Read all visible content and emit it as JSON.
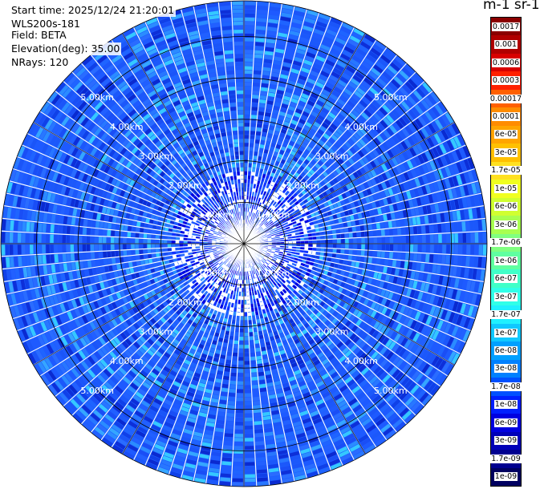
{
  "header": {
    "start_time": "Start time: 2025/12/24 21:20:01",
    "instrument": "WLS200s-181",
    "field": "Field: BETA",
    "elevation": "Elevation(deg): 35.00",
    "nrays": "NRays: 120"
  },
  "colorbar": {
    "title": "m-1 sr-1",
    "labels": [
      "0.0017",
      "0.001",
      "0.0006",
      "0.0003",
      "0.00017",
      "0.0001",
      "6e-05",
      "3e-05",
      "1.7e-05",
      "1e-05",
      "6e-06",
      "3e-06",
      "1.7e-06",
      "1e-06",
      "6e-07",
      "3e-07",
      "1.7e-07",
      "1e-07",
      "6e-08",
      "3e-08",
      "1.7e-08",
      "1e-08",
      "6e-09",
      "3e-09",
      "1.7e-09",
      "1e-09"
    ],
    "colors": [
      "#8b0000",
      "#b00000",
      "#d80000",
      "#ff2000",
      "#ff6000",
      "#ff8c00",
      "#ffa500",
      "#ffc000",
      "#ffe020",
      "#f0ff20",
      "#d0ff30",
      "#a8ff50",
      "#80ff80",
      "#60ffa0",
      "#40ffc8",
      "#30ffe8",
      "#20f0ff",
      "#10c8ff",
      "#00a0ff",
      "#0080ff",
      "#0050ff",
      "#0020ff",
      "#0000e0",
      "#0000b8",
      "#000090",
      "#000060"
    ]
  },
  "chart_data": {
    "type": "polar-ppi",
    "field": "BETA",
    "units": "m-1 sr-1",
    "n_rays": 120,
    "elevation_deg": 35.0,
    "range_rings_km": [
      1.0,
      2.0,
      3.0,
      4.0,
      5.0
    ],
    "ring_labels": [
      "1.00km",
      "2.00km",
      "3.00km",
      "4.00km",
      "5.00km"
    ],
    "max_range_km": 5.86,
    "dominant_value_range": [
      "1e-08",
      "6e-08"
    ],
    "scale": "log"
  }
}
